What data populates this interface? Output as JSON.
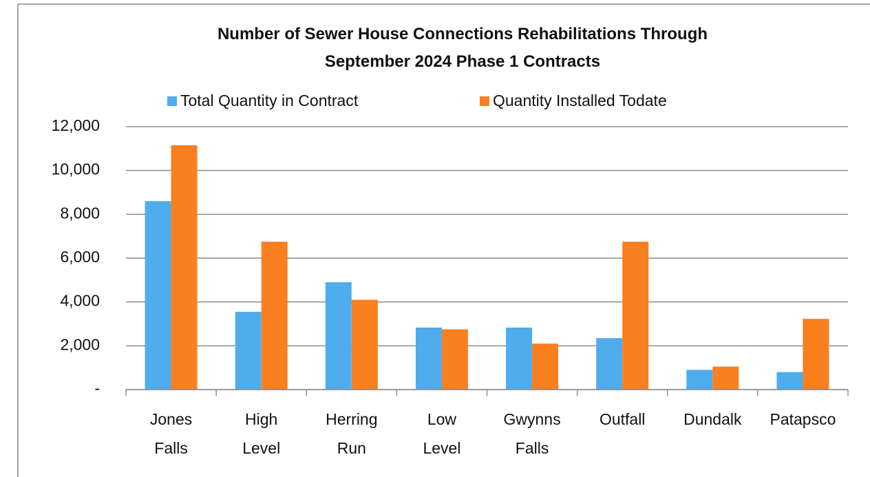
{
  "chart_data": {
    "type": "bar",
    "title": "Number of Sewer House Connections Rehabilitations Through September 2024 Phase 1 Contracts",
    "categories": [
      "Jones Falls",
      "High Level",
      "Herring Run",
      "Low Level",
      "Gwynns Falls",
      "Outfall",
      "Dundalk",
      "Patapsco"
    ],
    "series": [
      {
        "name": "Total Quantity in Contract",
        "color": "#4fadee",
        "values": [
          8600,
          3550,
          4900,
          2830,
          2830,
          2350,
          900,
          800
        ]
      },
      {
        "name": "Quantity Installed Todate",
        "color": "#fa7f1f",
        "values": [
          11150,
          6750,
          4100,
          2750,
          2100,
          6750,
          1050,
          3230
        ]
      }
    ],
    "ylim": [
      0,
      12000
    ],
    "yticks": [
      {
        "value": 0,
        "label": "-"
      },
      {
        "value": 2000,
        "label": "2,000"
      },
      {
        "value": 4000,
        "label": "4,000"
      },
      {
        "value": 6000,
        "label": "6,000"
      },
      {
        "value": 8000,
        "label": "8,000"
      },
      {
        "value": 10000,
        "label": "10,000"
      },
      {
        "value": 12000,
        "label": "12,000"
      }
    ],
    "grid": true,
    "legend": "top"
  }
}
